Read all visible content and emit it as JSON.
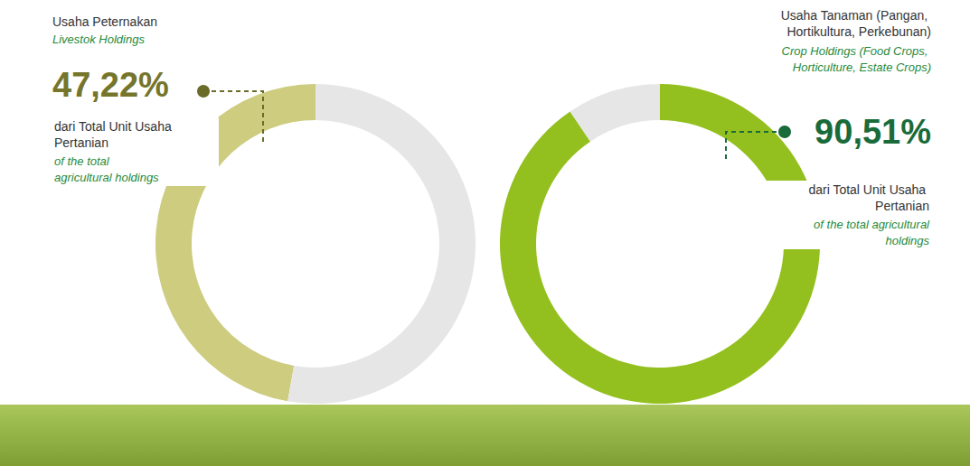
{
  "chart_data": [
    {
      "type": "pie",
      "title": "Usaha Peternakan",
      "subtitle": "Livestok Holdings",
      "values": [
        47.22,
        52.78
      ],
      "value_labels": [
        "47,22%",
        null
      ],
      "data_labels": true,
      "colors": [
        "#cdcc7f",
        "#e6e6e6"
      ],
      "annotations": [
        "dari Total Unit Usaha Pertanian",
        "of the total agricultural holdings"
      ]
    },
    {
      "type": "pie",
      "title": "Usaha Tanaman (Pangan, Hortikultura, Perkebunan)",
      "subtitle": "Crop Holdings (Food Crops, Horticulture, Estate Crops)",
      "values": [
        90.51,
        9.49
      ],
      "value_labels": [
        "90,51%",
        null
      ],
      "data_labels": true,
      "colors": [
        "#93c01f",
        "#e6e6e6"
      ],
      "annotations": [
        "dari Total Unit Usaha Pertanian",
        "of the total agricultural holdings"
      ]
    }
  ]
}
